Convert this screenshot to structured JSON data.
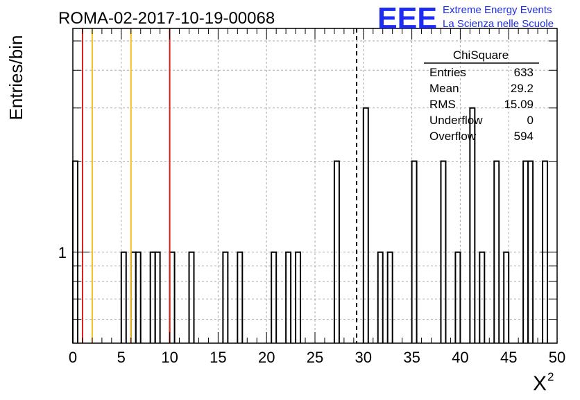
{
  "title": "ROMA-02-2017-10-19-00068",
  "logo": {
    "mark": "EEE",
    "line1": "Extreme Energy Events",
    "line2": "La Scienza nelle Scuole",
    "color": "#1c2cf0"
  },
  "stats": {
    "name": "ChiSquare",
    "rows": [
      {
        "label": "Entries",
        "value": "633"
      },
      {
        "label": "Mean",
        "value": "29.2"
      },
      {
        "label": "RMS",
        "value": "15.09"
      },
      {
        "label": "Underflow",
        "value": "0"
      },
      {
        "label": "Overflow",
        "value": "594"
      }
    ]
  },
  "chart_data": {
    "type": "bar",
    "histogram": true,
    "xlabel": "X",
    "xlabel_superscript": "2",
    "ylabel": "Entries/bin",
    "xlim": [
      0,
      50
    ],
    "ylim": [
      0.5,
      5.5
    ],
    "yscale": "log",
    "grid": true,
    "bin_width": 0.5,
    "x_ticks": [
      "0",
      "5",
      "10",
      "15",
      "20",
      "25",
      "30",
      "35",
      "40",
      "45",
      "50"
    ],
    "y_tick_labels": [
      {
        "value": 1,
        "label": "1"
      }
    ],
    "colors": {
      "red_line": "#d62020",
      "yellow_line": "#f2c01f",
      "dashed_line": "#000000"
    },
    "reference_lines": [
      {
        "x": 1.0,
        "color": "red"
      },
      {
        "x": 2.0,
        "color": "yellow"
      },
      {
        "x": 6.0,
        "color": "yellow"
      },
      {
        "x": 10.0,
        "color": "red"
      },
      {
        "x": 29.3,
        "color": "black",
        "style": "dashed"
      }
    ],
    "bins": [
      {
        "x": 0.0,
        "count": 2
      },
      {
        "x": 5.0,
        "count": 1
      },
      {
        "x": 6.0,
        "count": 1
      },
      {
        "x": 6.5,
        "count": 1
      },
      {
        "x": 8.0,
        "count": 1
      },
      {
        "x": 8.5,
        "count": 1
      },
      {
        "x": 10.0,
        "count": 1
      },
      {
        "x": 12.0,
        "count": 1
      },
      {
        "x": 15.5,
        "count": 1
      },
      {
        "x": 17.0,
        "count": 1
      },
      {
        "x": 20.5,
        "count": 1
      },
      {
        "x": 22.0,
        "count": 1
      },
      {
        "x": 23.0,
        "count": 1
      },
      {
        "x": 27.0,
        "count": 2
      },
      {
        "x": 30.0,
        "count": 3
      },
      {
        "x": 31.5,
        "count": 1
      },
      {
        "x": 32.5,
        "count": 1
      },
      {
        "x": 35.0,
        "count": 2
      },
      {
        "x": 38.0,
        "count": 2
      },
      {
        "x": 39.5,
        "count": 1
      },
      {
        "x": 41.0,
        "count": 3
      },
      {
        "x": 42.0,
        "count": 1
      },
      {
        "x": 43.5,
        "count": 2
      },
      {
        "x": 44.5,
        "count": 1
      },
      {
        "x": 46.5,
        "count": 2
      },
      {
        "x": 47.0,
        "count": 2
      },
      {
        "x": 48.5,
        "count": 2
      }
    ]
  }
}
